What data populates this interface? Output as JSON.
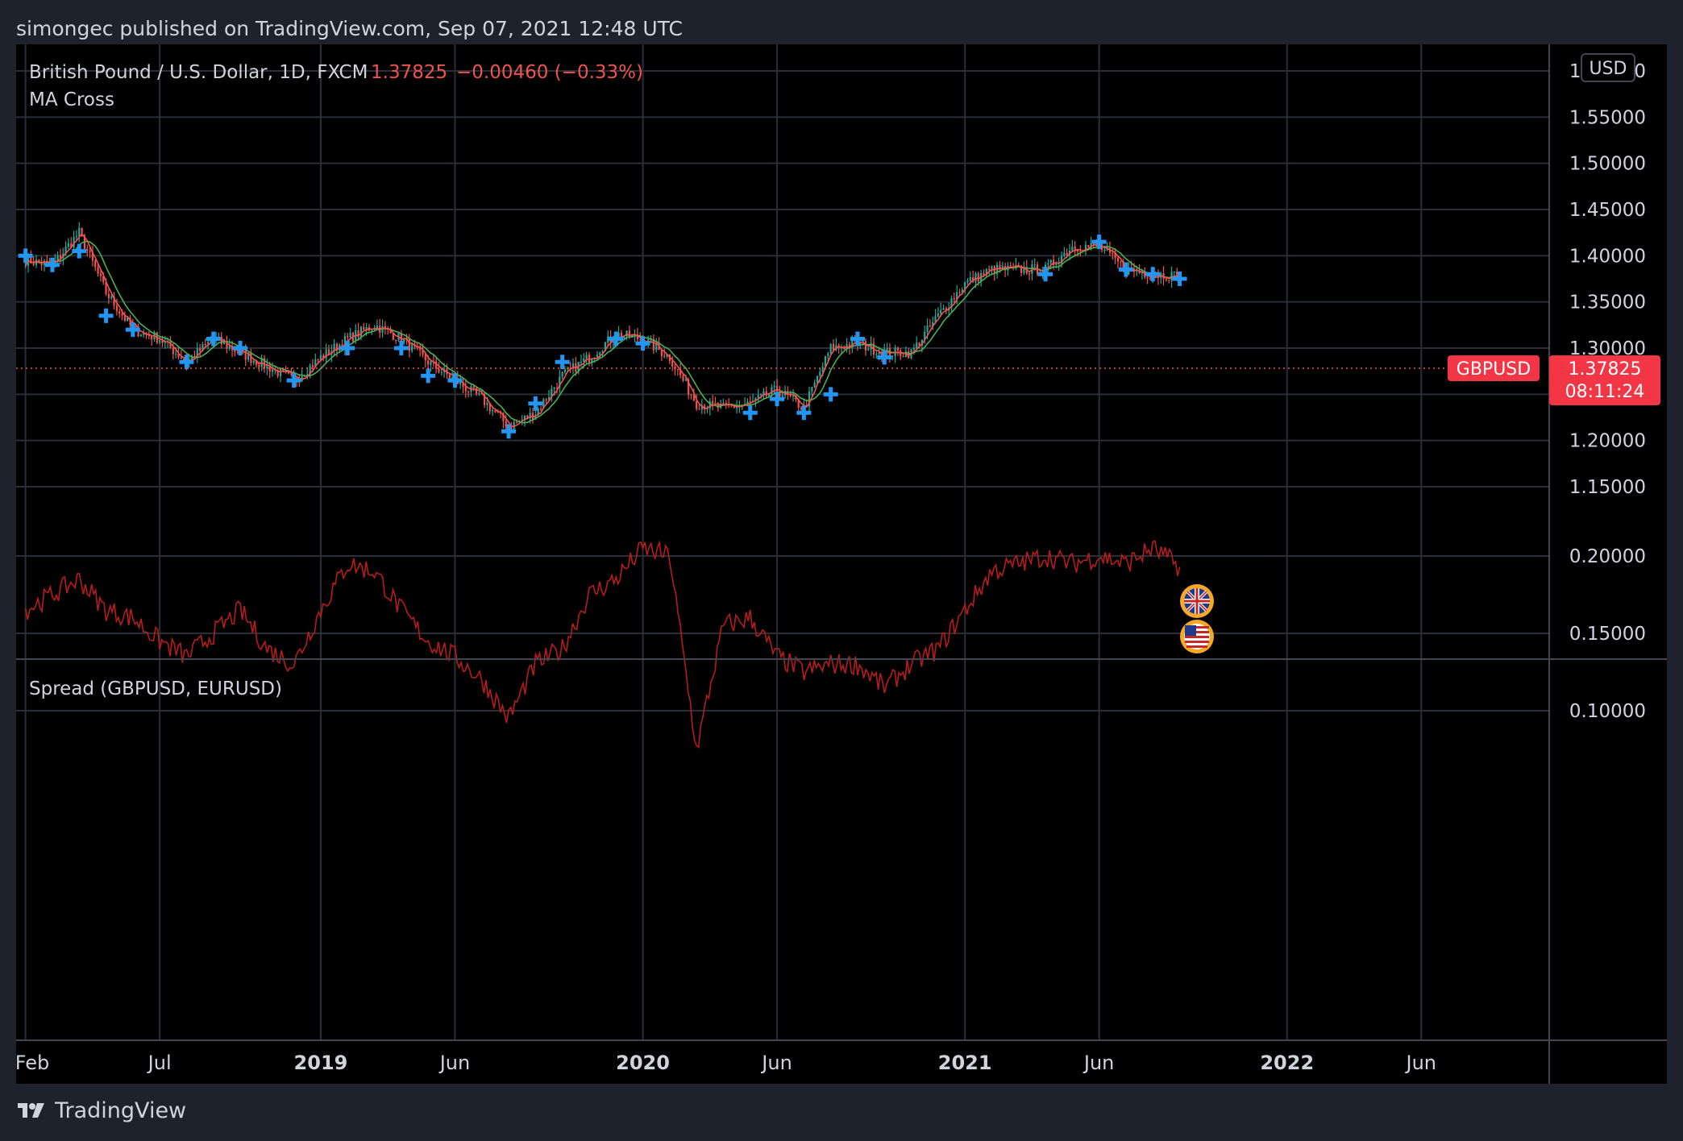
{
  "header": {
    "published_text": "simongec published on TradingView.com, Sep 07, 2021 12:48 UTC"
  },
  "footer": {
    "brand": "TradingView"
  },
  "main_chart": {
    "instrument": "British Pound / U.S. Dollar, 1D, FXCM",
    "price": "1.37825",
    "change": "−0.00460 (−0.33%)",
    "indicator": "MA Cross",
    "currency_button": "USD",
    "price_label": {
      "symbol": "GBPUSD",
      "value": "1.37825",
      "countdown": "08:11:24"
    }
  },
  "spread_pane": {
    "title": "Spread (GBPUSD, EURUSD)"
  },
  "colors": {
    "up": "#26a69a",
    "down": "#ef5350",
    "ma_fast": "#ef5350",
    "ma_slow": "#4caf50",
    "cross": "#2196f3",
    "spread": "#b71c1c",
    "grid": "#2a2e39",
    "label_bg": "#f23645",
    "text": "#d1d4dc"
  },
  "chart_data": [
    {
      "type": "line",
      "title": "British Pound / U.S. Dollar, 1D, FXCM",
      "series_kind": "candlestick with MA Cross",
      "ylim": [
        1.14,
        1.62
      ],
      "y_ticks": [
        "1.60000",
        "1.55000",
        "1.50000",
        "1.45000",
        "1.40000",
        "1.35000",
        "1.30000",
        "1.25000",
        "1.20000",
        "1.15000"
      ],
      "x_ticks": [
        "Feb",
        "Jul",
        "2019",
        "Jun",
        "2020",
        "Jun",
        "2021",
        "Jun",
        "2022",
        "Jun"
      ],
      "x": [
        "2018-02",
        "2018-03",
        "2018-04",
        "2018-05",
        "2018-06",
        "2018-07",
        "2018-08",
        "2018-09",
        "2018-10",
        "2018-11",
        "2018-12",
        "2019-01",
        "2019-02",
        "2019-03",
        "2019-04",
        "2019-05",
        "2019-06",
        "2019-07",
        "2019-08",
        "2019-09",
        "2019-10",
        "2019-11",
        "2019-12",
        "2020-01",
        "2020-02",
        "2020-03",
        "2020-04",
        "2020-05",
        "2020-06",
        "2020-07",
        "2020-08",
        "2020-09",
        "2020-10",
        "2020-11",
        "2020-12",
        "2021-01",
        "2021-02",
        "2021-03",
        "2021-04",
        "2021-05",
        "2021-06",
        "2021-07",
        "2021-08",
        "2021-09"
      ],
      "series": [
        {
          "values": [
            1.395,
            1.39,
            1.425,
            1.36,
            1.32,
            1.31,
            1.285,
            1.31,
            1.295,
            1.28,
            1.265,
            1.29,
            1.31,
            1.325,
            1.31,
            1.285,
            1.265,
            1.245,
            1.215,
            1.23,
            1.27,
            1.29,
            1.315,
            1.31,
            1.29,
            1.24,
            1.235,
            1.24,
            1.255,
            1.235,
            1.3,
            1.305,
            1.295,
            1.295,
            1.335,
            1.37,
            1.385,
            1.385,
            1.385,
            1.41,
            1.41,
            1.385,
            1.38,
            1.378
          ]
        }
      ],
      "last_price": 1.37825,
      "cross_markers": [
        [
          "2018-02",
          1.4
        ],
        [
          "2018-03",
          1.39
        ],
        [
          "2018-04",
          1.405
        ],
        [
          "2018-05",
          1.335
        ],
        [
          "2018-06",
          1.32
        ],
        [
          "2018-08",
          1.285
        ],
        [
          "2018-09",
          1.31
        ],
        [
          "2018-10",
          1.3
        ],
        [
          "2018-12",
          1.265
        ],
        [
          "2019-02",
          1.3
        ],
        [
          "2019-04",
          1.3
        ],
        [
          "2019-05",
          1.27
        ],
        [
          "2019-06",
          1.265
        ],
        [
          "2019-08",
          1.21
        ],
        [
          "2019-09",
          1.24
        ],
        [
          "2019-10",
          1.285
        ],
        [
          "2019-12",
          1.31
        ],
        [
          "2020-01",
          1.305
        ],
        [
          "2020-05",
          1.23
        ],
        [
          "2020-06",
          1.245
        ],
        [
          "2020-07",
          1.23
        ],
        [
          "2020-08",
          1.25
        ],
        [
          "2020-09",
          1.31
        ],
        [
          "2020-10",
          1.29
        ],
        [
          "2021-04",
          1.38
        ],
        [
          "2021-06",
          1.415
        ],
        [
          "2021-07",
          1.385
        ],
        [
          "2021-08",
          1.38
        ],
        [
          "2021-09",
          1.375
        ]
      ],
      "events": [
        "uk-flag",
        "us-flag"
      ]
    },
    {
      "type": "line",
      "title": "Spread (GBPUSD, EURUSD)",
      "ylim": [
        0.05,
        0.235
      ],
      "y_ticks": [
        "0.20000",
        "0.15000",
        "0.10000"
      ],
      "x": [
        "2018-02",
        "2018-03",
        "2018-04",
        "2018-05",
        "2018-06",
        "2018-07",
        "2018-08",
        "2018-09",
        "2018-10",
        "2018-11",
        "2018-12",
        "2019-01",
        "2019-02",
        "2019-03",
        "2019-04",
        "2019-05",
        "2019-06",
        "2019-07",
        "2019-08",
        "2019-09",
        "2019-10",
        "2019-11",
        "2019-12",
        "2020-01",
        "2020-02",
        "2020-03",
        "2020-04",
        "2020-05",
        "2020-06",
        "2020-07",
        "2020-08",
        "2020-09",
        "2020-10",
        "2020-11",
        "2020-12",
        "2021-01",
        "2021-02",
        "2021-03",
        "2021-04",
        "2021-05",
        "2021-06",
        "2021-07",
        "2021-08",
        "2021-09"
      ],
      "series": [
        {
          "values": [
            0.165,
            0.175,
            0.185,
            0.165,
            0.16,
            0.145,
            0.135,
            0.15,
            0.165,
            0.14,
            0.13,
            0.165,
            0.195,
            0.19,
            0.165,
            0.145,
            0.135,
            0.12,
            0.095,
            0.13,
            0.14,
            0.175,
            0.185,
            0.205,
            0.2,
            0.075,
            0.155,
            0.16,
            0.135,
            0.125,
            0.13,
            0.13,
            0.115,
            0.13,
            0.14,
            0.165,
            0.19,
            0.195,
            0.2,
            0.195,
            0.2,
            0.195,
            0.205,
            0.193
          ]
        }
      ]
    }
  ]
}
